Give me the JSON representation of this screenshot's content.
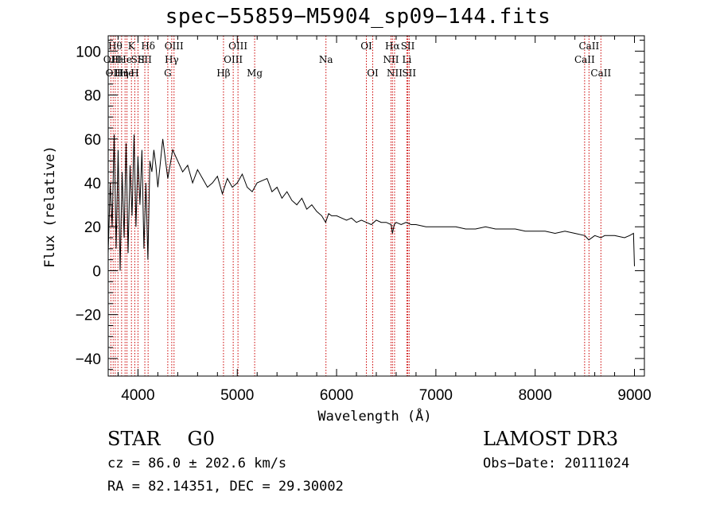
{
  "header": {
    "title": "spec−55859−M5904_sp09−144.fits"
  },
  "chart_data": {
    "type": "line",
    "title": "spec−55859−M5904_sp09−144.fits",
    "xlabel": "Wavelength (Å)",
    "ylabel": "Flux (relative)",
    "xlim": [
      3700,
      9100
    ],
    "ylim": [
      -48,
      107
    ],
    "xticks": [
      4000,
      5000,
      6000,
      7000,
      8000,
      9000
    ],
    "xtick_labels": [
      "4000",
      "5000",
      "6000",
      "7000",
      "8000",
      "9000"
    ],
    "yticks": [
      -40,
      -20,
      0,
      20,
      40,
      60,
      80,
      100
    ],
    "ytick_labels": [
      "−40",
      "−20",
      "0",
      "20",
      "40",
      "60",
      "80",
      "100"
    ],
    "grid": false,
    "spectrum": {
      "x": [
        3700,
        3720,
        3740,
        3760,
        3780,
        3800,
        3820,
        3840,
        3860,
        3880,
        3900,
        3920,
        3940,
        3960,
        3980,
        4000,
        4020,
        4040,
        4060,
        4080,
        4100,
        4120,
        4140,
        4160,
        4180,
        4200,
        4250,
        4300,
        4350,
        4400,
        4450,
        4500,
        4550,
        4600,
        4650,
        4700,
        4750,
        4800,
        4850,
        4900,
        4950,
        5000,
        5050,
        5100,
        5150,
        5200,
        5250,
        5300,
        5350,
        5400,
        5450,
        5500,
        5550,
        5600,
        5650,
        5700,
        5750,
        5800,
        5850,
        5890,
        5920,
        5950,
        6000,
        6050,
        6100,
        6150,
        6200,
        6250,
        6300,
        6350,
        6400,
        6450,
        6500,
        6550,
        6563,
        6580,
        6600,
        6650,
        6700,
        6750,
        6800,
        6900,
        7000,
        7100,
        7200,
        7300,
        7400,
        7500,
        7600,
        7700,
        7800,
        7900,
        8000,
        8100,
        8200,
        8300,
        8400,
        8500,
        8540,
        8600,
        8662,
        8700,
        8800,
        8900,
        8950,
        8990,
        9000
      ],
      "y": [
        8,
        40,
        20,
        62,
        10,
        55,
        0,
        45,
        15,
        58,
        8,
        48,
        25,
        62,
        20,
        52,
        30,
        55,
        10,
        40,
        5,
        50,
        45,
        55,
        48,
        38,
        60,
        42,
        55,
        50,
        45,
        48,
        40,
        46,
        42,
        38,
        40,
        43,
        35,
        42,
        38,
        40,
        44,
        38,
        36,
        40,
        41,
        42,
        36,
        38,
        33,
        36,
        32,
        30,
        33,
        28,
        30,
        27,
        25,
        22,
        26,
        25,
        25,
        24,
        23,
        24,
        22,
        23,
        22,
        21,
        23,
        22,
        22,
        21,
        17,
        21,
        22,
        21,
        22,
        21,
        21,
        20,
        20,
        20,
        20,
        19,
        19,
        20,
        19,
        19,
        19,
        18,
        18,
        18,
        17,
        18,
        17,
        16,
        14,
        16,
        15,
        16,
        16,
        15,
        16,
        17,
        2
      ]
    },
    "lines": [
      {
        "wavelength": 3727,
        "label": "OII",
        "row": 2
      },
      {
        "wavelength": 3750,
        "label": "OII",
        "row": 3
      },
      {
        "wavelength": 3771,
        "label": "Hθ",
        "row": 1
      },
      {
        "wavelength": 3798,
        "label": "Hι",
        "row": 2
      },
      {
        "wavelength": 3835,
        "label": "Hη",
        "row": 3
      },
      {
        "wavelength": 3870,
        "label": "He",
        "row": 2
      },
      {
        "wavelength": 3889,
        "label": "He",
        "row": 3
      },
      {
        "wavelength": 3934,
        "label": "K",
        "row": 1
      },
      {
        "wavelength": 3968,
        "label": "H",
        "row": 3
      },
      {
        "wavelength": 4000,
        "label": "SII",
        "row": 2
      },
      {
        "wavelength": 4102,
        "label": "Hδ",
        "row": 1
      },
      {
        "wavelength": 4069,
        "label": "SII",
        "row": 2
      },
      {
        "wavelength": 4300,
        "label": "G",
        "row": 3
      },
      {
        "wavelength": 4340,
        "label": "Hγ",
        "row": 2
      },
      {
        "wavelength": 4363,
        "label": "OIII",
        "row": 1
      },
      {
        "wavelength": 4861,
        "label": "Hβ",
        "row": 3
      },
      {
        "wavelength": 4959,
        "label": "OIII",
        "row": 2
      },
      {
        "wavelength": 5007,
        "label": "OIII",
        "row": 1
      },
      {
        "wavelength": 5175,
        "label": "Mg",
        "row": 3
      },
      {
        "wavelength": 5893,
        "label": "Na",
        "row": 2
      },
      {
        "wavelength": 6300,
        "label": "OI",
        "row": 1
      },
      {
        "wavelength": 6364,
        "label": "OI",
        "row": 3
      },
      {
        "wavelength": 6548,
        "label": "NII",
        "row": 2
      },
      {
        "wavelength": 6563,
        "label": "Hα",
        "row": 1
      },
      {
        "wavelength": 6584,
        "label": "NII",
        "row": 3
      },
      {
        "wavelength": 6708,
        "label": "Li",
        "row": 2
      },
      {
        "wavelength": 6717,
        "label": "SII",
        "row": 1
      },
      {
        "wavelength": 6731,
        "label": "SII",
        "row": 3
      },
      {
        "wavelength": 8498,
        "label": "CaII",
        "row": 2
      },
      {
        "wavelength": 8542,
        "label": "CaII",
        "row": 1
      },
      {
        "wavelength": 8662,
        "label": "CaII",
        "row": 3
      }
    ]
  },
  "info": {
    "class_label": "STAR",
    "subclass_label": "G0",
    "cz_line": "cz = 86.0 ± 202.6 km/s",
    "radec_line": "RA =  82.14351, DEC =  29.30002",
    "survey_label": "LAMOST DR3",
    "obs_date_line": "Obs−Date: 20111024"
  },
  "colors": {
    "line_marker": "#cc0000",
    "spectrum": "#000000",
    "axes": "#000000"
  }
}
